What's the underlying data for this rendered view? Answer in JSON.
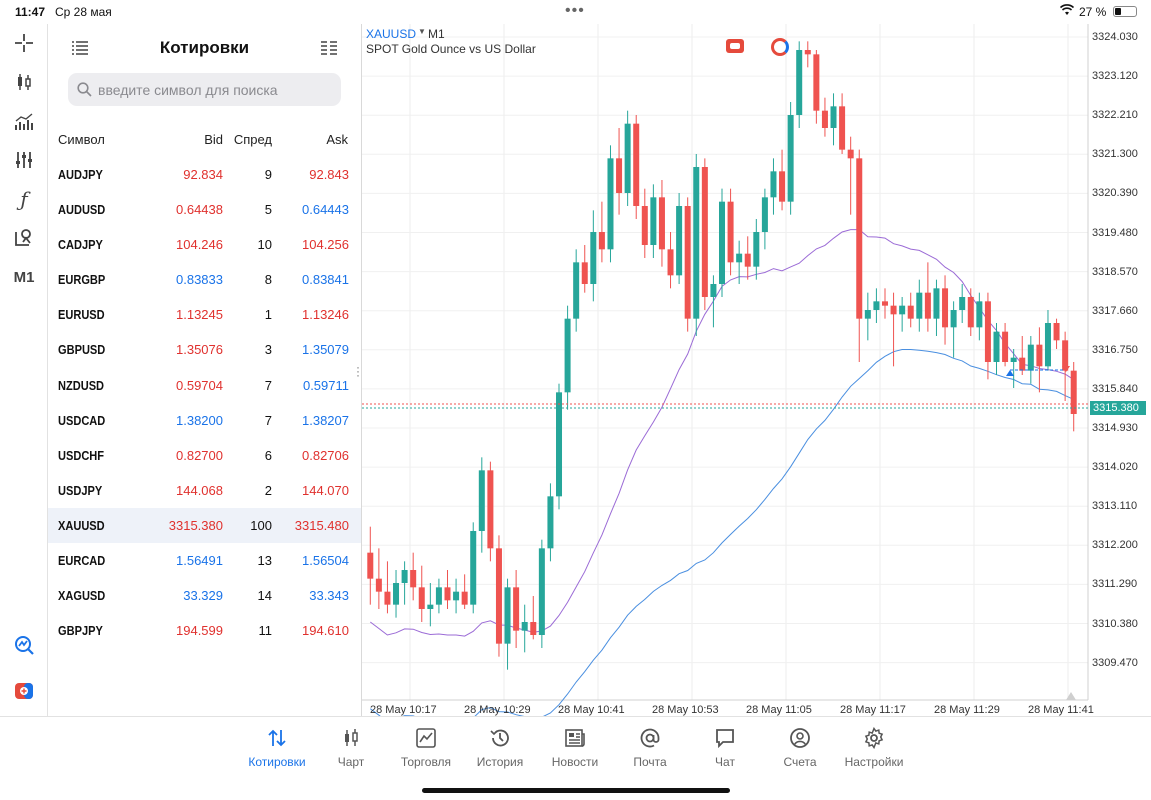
{
  "status": {
    "time": "11:47",
    "date": "Ср 28 мая",
    "battery": "27 %"
  },
  "quotes": {
    "title": "Котировки",
    "search_placeholder": "введите символ для поиска",
    "columns": {
      "symbol": "Символ",
      "bid": "Bid",
      "spread": "Спред",
      "ask": "Ask"
    },
    "rows": [
      {
        "symbol": "AUDJPY",
        "bid": "92.834",
        "spread": "9",
        "ask": "92.843",
        "color": "red"
      },
      {
        "symbol": "AUDUSD",
        "bid": "0.64438",
        "spread": "5",
        "ask": "0.64443",
        "color": "mixed"
      },
      {
        "symbol": "CADJPY",
        "bid": "104.246",
        "spread": "10",
        "ask": "104.256",
        "color": "red"
      },
      {
        "symbol": "EURGBP",
        "bid": "0.83833",
        "spread": "8",
        "ask": "0.83841",
        "color": "blue"
      },
      {
        "symbol": "EURUSD",
        "bid": "1.13245",
        "spread": "1",
        "ask": "1.13246",
        "color": "red"
      },
      {
        "symbol": "GBPUSD",
        "bid": "1.35076",
        "spread": "3",
        "ask": "1.35079",
        "color": "mixed"
      },
      {
        "symbol": "NZDUSD",
        "bid": "0.59704",
        "spread": "7",
        "ask": "0.59711",
        "color": "mixed"
      },
      {
        "symbol": "USDCAD",
        "bid": "1.38200",
        "spread": "7",
        "ask": "1.38207",
        "color": "blue"
      },
      {
        "symbol": "USDCHF",
        "bid": "0.82700",
        "spread": "6",
        "ask": "0.82706",
        "color": "red"
      },
      {
        "symbol": "USDJPY",
        "bid": "144.068",
        "spread": "2",
        "ask": "144.070",
        "color": "red"
      },
      {
        "symbol": "XAUUSD",
        "bid": "3315.380",
        "spread": "100",
        "ask": "3315.480",
        "color": "red"
      },
      {
        "symbol": "EURCAD",
        "bid": "1.56491",
        "spread": "13",
        "ask": "1.56504",
        "color": "blue"
      },
      {
        "symbol": "XAGUSD",
        "bid": "33.329",
        "spread": "14",
        "ask": "33.343",
        "color": "blue"
      },
      {
        "symbol": "GBPJPY",
        "bid": "194.599",
        "spread": "11",
        "ask": "194.610",
        "color": "red"
      }
    ],
    "selected": "XAUUSD"
  },
  "chart": {
    "symbol": "XAUUSD",
    "timeframe": "M1",
    "description": "SPOT Gold Ounce vs US Dollar",
    "current_price": "3315.380",
    "price_levels": [
      "3324.030",
      "3323.120",
      "3322.210",
      "3321.300",
      "3320.390",
      "3319.480",
      "3318.570",
      "3317.660",
      "3316.750",
      "3315.840",
      "3314.930",
      "3314.020",
      "3313.110",
      "3312.200",
      "3311.290",
      "3310.380",
      "3309.470"
    ],
    "time_labels": [
      "28 May 10:17",
      "28 May 10:29",
      "28 May 10:41",
      "28 May 10:53",
      "28 May 11:05",
      "28 May 11:17",
      "28 May 11:29",
      "28 May 11:41"
    ],
    "colors": {
      "bull": "#26a69a",
      "bear": "#ef5350",
      "ma_fast": "#9b6bd6",
      "ma_slow": "#4a8fe0"
    }
  },
  "chart_data": {
    "type": "candlestick",
    "ylim": [
      3308.8,
      3324.4
    ],
    "candles": [
      [
        3312.2,
        3312.8,
        3311.0,
        3311.6
      ],
      [
        3311.6,
        3312.3,
        3310.9,
        3311.3
      ],
      [
        3311.3,
        3312.0,
        3310.8,
        3311.0
      ],
      [
        3311.0,
        3311.8,
        3310.7,
        3311.5
      ],
      [
        3311.5,
        3312.0,
        3311.0,
        3311.8
      ],
      [
        3311.8,
        3312.2,
        3311.1,
        3311.4
      ],
      [
        3311.4,
        3311.9,
        3310.6,
        3310.9
      ],
      [
        3310.9,
        3311.5,
        3310.5,
        3311.0
      ],
      [
        3311.0,
        3311.6,
        3310.8,
        3311.4
      ],
      [
        3311.4,
        3311.8,
        3310.9,
        3311.1
      ],
      [
        3311.1,
        3311.6,
        3310.8,
        3311.3
      ],
      [
        3311.3,
        3311.7,
        3310.9,
        3311.0
      ],
      [
        3311.0,
        3312.9,
        3310.8,
        3312.7
      ],
      [
        3312.7,
        3314.4,
        3312.2,
        3314.1
      ],
      [
        3314.1,
        3314.3,
        3312.0,
        3312.3
      ],
      [
        3312.3,
        3312.6,
        3309.8,
        3310.1
      ],
      [
        3310.1,
        3311.6,
        3309.5,
        3311.4
      ],
      [
        3311.4,
        3311.8,
        3310.0,
        3310.4
      ],
      [
        3310.4,
        3311.0,
        3309.9,
        3310.6
      ],
      [
        3310.6,
        3311.2,
        3310.2,
        3310.3
      ],
      [
        3310.3,
        3312.5,
        3310.0,
        3312.3
      ],
      [
        3312.3,
        3313.8,
        3312.0,
        3313.5
      ],
      [
        3313.5,
        3316.1,
        3313.2,
        3315.9
      ],
      [
        3315.9,
        3317.9,
        3315.5,
        3317.6
      ],
      [
        3317.6,
        3319.2,
        3317.3,
        3318.9
      ],
      [
        3318.9,
        3319.3,
        3318.2,
        3318.4
      ],
      [
        3318.4,
        3320.1,
        3318.0,
        3319.6
      ],
      [
        3319.6,
        3320.3,
        3318.9,
        3319.2
      ],
      [
        3319.2,
        3321.6,
        3318.9,
        3321.3
      ],
      [
        3321.3,
        3322.0,
        3320.0,
        3320.5
      ],
      [
        3320.5,
        3322.4,
        3320.2,
        3322.1
      ],
      [
        3322.1,
        3322.3,
        3319.9,
        3320.2
      ],
      [
        3320.2,
        3320.6,
        3319.0,
        3319.3
      ],
      [
        3319.3,
        3320.7,
        3319.0,
        3320.4
      ],
      [
        3320.4,
        3320.8,
        3318.8,
        3319.2
      ],
      [
        3319.2,
        3319.6,
        3318.3,
        3318.6
      ],
      [
        3318.6,
        3320.5,
        3318.4,
        3320.2
      ],
      [
        3320.2,
        3320.4,
        3317.3,
        3317.6
      ],
      [
        3317.6,
        3321.4,
        3317.2,
        3321.1
      ],
      [
        3321.1,
        3321.3,
        3317.8,
        3318.1
      ],
      [
        3318.1,
        3318.6,
        3317.4,
        3318.4
      ],
      [
        3318.4,
        3320.6,
        3318.1,
        3320.3
      ],
      [
        3320.3,
        3320.6,
        3318.6,
        3318.9
      ],
      [
        3318.9,
        3319.4,
        3318.4,
        3319.1
      ],
      [
        3319.1,
        3319.5,
        3318.5,
        3318.8
      ],
      [
        3318.8,
        3319.9,
        3318.5,
        3319.6
      ],
      [
        3319.6,
        3320.6,
        3319.2,
        3320.4
      ],
      [
        3320.4,
        3321.3,
        3320.0,
        3321.0
      ],
      [
        3321.0,
        3321.5,
        3320.1,
        3320.3
      ],
      [
        3320.3,
        3322.6,
        3320.0,
        3322.3
      ],
      [
        3322.3,
        3324.0,
        3322.0,
        3323.8
      ],
      [
        3323.8,
        3324.0,
        3323.4,
        3323.7
      ],
      [
        3323.7,
        3323.8,
        3322.1,
        3322.4
      ],
      [
        3322.4,
        3322.7,
        3321.8,
        3322.0
      ],
      [
        3322.0,
        3322.8,
        3321.6,
        3322.5
      ],
      [
        3322.5,
        3322.8,
        3321.4,
        3321.5
      ],
      [
        3321.5,
        3321.8,
        3320.0,
        3321.3
      ],
      [
        3321.3,
        3321.5,
        3316.6,
        3317.6
      ],
      [
        3317.6,
        3318.2,
        3317.1,
        3317.8
      ],
      [
        3317.8,
        3318.3,
        3317.5,
        3318.0
      ],
      [
        3318.0,
        3318.3,
        3317.6,
        3317.9
      ],
      [
        3317.9,
        3318.2,
        3316.5,
        3317.7
      ],
      [
        3317.7,
        3318.1,
        3317.3,
        3317.9
      ],
      [
        3317.9,
        3318.2,
        3317.4,
        3317.6
      ],
      [
        3317.6,
        3318.5,
        3317.3,
        3318.2
      ],
      [
        3318.2,
        3318.9,
        3317.3,
        3317.6
      ],
      [
        3317.6,
        3318.5,
        3317.2,
        3318.3
      ],
      [
        3318.3,
        3318.6,
        3317.0,
        3317.4
      ],
      [
        3317.4,
        3318.0,
        3316.7,
        3317.8
      ],
      [
        3317.8,
        3318.4,
        3317.5,
        3318.1
      ],
      [
        3318.1,
        3318.3,
        3317.2,
        3317.4
      ],
      [
        3317.4,
        3318.2,
        3317.1,
        3318.0
      ],
      [
        3318.0,
        3318.2,
        3316.2,
        3316.6
      ],
      [
        3316.6,
        3317.5,
        3316.3,
        3317.3
      ],
      [
        3317.3,
        3317.5,
        3316.5,
        3316.6
      ],
      [
        3316.6,
        3316.9,
        3316.0,
        3316.7
      ],
      [
        3316.7,
        3317.2,
        3316.3,
        3316.4
      ],
      [
        3316.4,
        3317.2,
        3316.1,
        3317.0
      ],
      [
        3317.0,
        3317.4,
        3315.9,
        3316.5
      ],
      [
        3316.5,
        3317.8,
        3316.4,
        3317.5
      ],
      [
        3317.5,
        3317.6,
        3316.9,
        3317.1
      ],
      [
        3317.1,
        3317.3,
        3315.7,
        3316.4
      ],
      [
        3316.4,
        3316.6,
        3315.0,
        3315.4
      ]
    ]
  },
  "tabs": [
    {
      "label": "Котировки",
      "icon": "arrows-updown-icon",
      "active": true
    },
    {
      "label": "Чарт",
      "icon": "candles-icon",
      "active": false
    },
    {
      "label": "Торговля",
      "icon": "trade-chart-icon",
      "active": false
    },
    {
      "label": "История",
      "icon": "history-icon",
      "active": false
    },
    {
      "label": "Новости",
      "icon": "news-icon",
      "active": false
    },
    {
      "label": "Почта",
      "icon": "mail-at-icon",
      "active": false
    },
    {
      "label": "Чат",
      "icon": "chat-icon",
      "active": false
    },
    {
      "label": "Счета",
      "icon": "account-icon",
      "active": false
    },
    {
      "label": "Настройки",
      "icon": "gear-icon",
      "active": false
    }
  ],
  "left_toolbar": {
    "timeframe_label": "M1"
  }
}
